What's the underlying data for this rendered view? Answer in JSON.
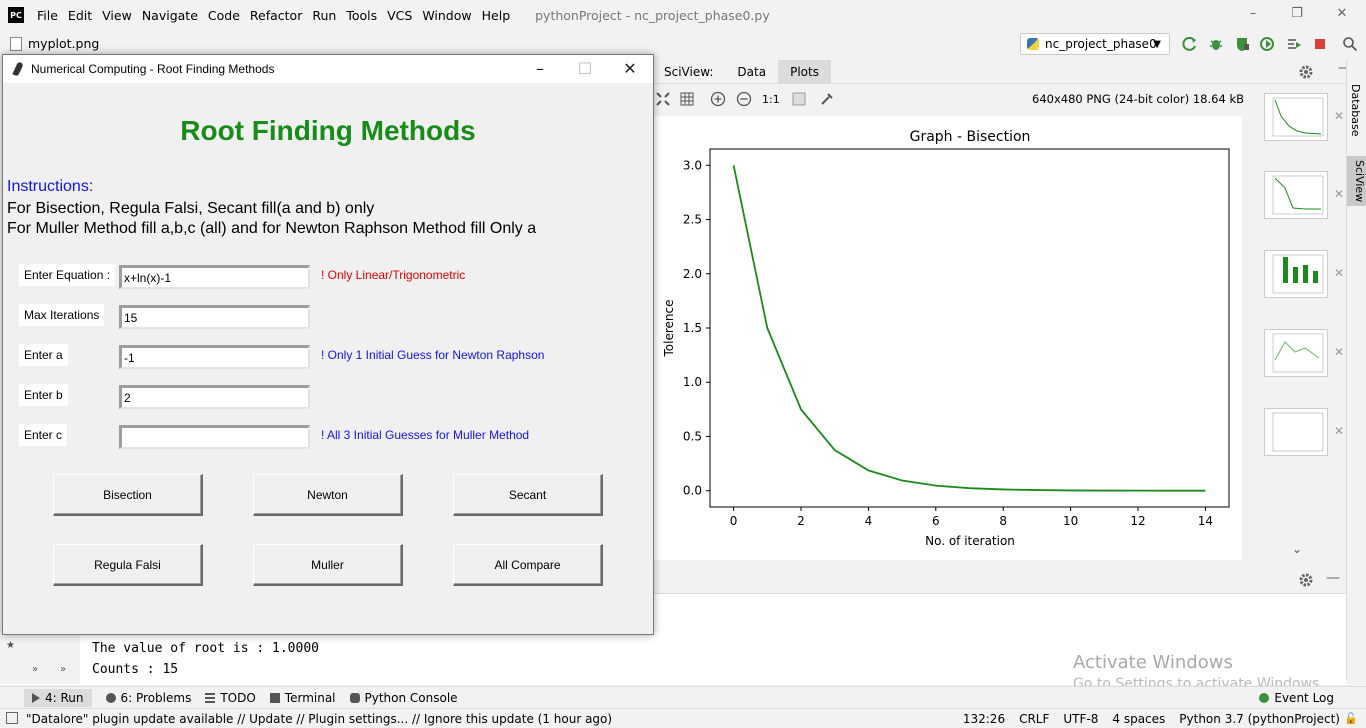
{
  "ide": {
    "logo": "PC",
    "menu": [
      "File",
      "Edit",
      "View",
      "Navigate",
      "Code",
      "Refactor",
      "Run",
      "Tools",
      "VCS",
      "Window",
      "Help"
    ],
    "title": "pythonProject - nc_project_phase0.py",
    "open_file": "myplot.png",
    "run_config": "nc_project_phase0"
  },
  "sciview": {
    "label": "SciView:",
    "tabs": [
      "Data",
      "Plots"
    ],
    "zoom_label": "1:1",
    "image_info": "640x480 PNG (24-bit color) 18.64 kB"
  },
  "chart_data": {
    "type": "line",
    "title": "Graph - Bisection",
    "xlabel": "No. of iteration",
    "ylabel": "Tolerence",
    "x": [
      0,
      1,
      2,
      3,
      4,
      5,
      6,
      7,
      8,
      9,
      10,
      11,
      12,
      13,
      14
    ],
    "series": [
      {
        "values": [
          3.0,
          1.5,
          0.75,
          0.375,
          0.1875,
          0.09375,
          0.046875,
          0.0234,
          0.0117,
          0.0059,
          0.0029,
          0.0015,
          0.0007,
          0.0004,
          0.0002
        ],
        "color": "#1a8a1a"
      }
    ],
    "xlim": [
      -0.7,
      14.7
    ],
    "ylim": [
      -0.15,
      3.15
    ],
    "xticks": [
      "0",
      "2",
      "4",
      "6",
      "8",
      "10",
      "12",
      "14"
    ],
    "yticks": [
      "0.0",
      "0.5",
      "1.0",
      "1.5",
      "2.0",
      "2.5",
      "3.0"
    ],
    "grid": false
  },
  "right_strip": {
    "tabs": [
      "Database",
      "SciView"
    ]
  },
  "console": {
    "lines": [
      "The value of root is :  1.0000",
      "Counts :  15"
    ]
  },
  "watermark": {
    "line1": "Activate Windows",
    "line2": "Go to Settings to activate Windows."
  },
  "toolwindows": {
    "run": "4: Run",
    "problems": "6: Problems",
    "todo": "TODO",
    "terminal": "Terminal",
    "python_console": "Python Console",
    "event_log": "Event Log"
  },
  "status": {
    "message": "\"Datalore\" plugin update available // Update // Plugin settings... // Ignore this update (1 hour ago)",
    "position": "132:26",
    "line_sep": "CRLF",
    "encoding": "UTF-8",
    "indent": "4 spaces",
    "interpreter": "Python 3.7 (pythonProject)"
  },
  "tk": {
    "title": "Numerical Computing - Root Finding Methods",
    "heading": "Root Finding Methods",
    "instructions_head": "Instructions:",
    "instr1": "For Bisection, Regula Falsi, Secant fill(a and b) only",
    "instr2": "For Muller Method fill a,b,c (all) and for Newton Raphson Method fill Only a",
    "fields": {
      "equation": {
        "label": "Enter Equation :",
        "value": "x+ln(x)-1",
        "hint": "! Only Linear/Trigonometric"
      },
      "max_iter": {
        "label": "Max Iterations",
        "value": "15"
      },
      "a": {
        "label": "Enter a",
        "value": "-1",
        "hint": "! Only 1 Initial Guess for Newton Raphson"
      },
      "b": {
        "label": "Enter b",
        "value": "2"
      },
      "c": {
        "label": "Enter c",
        "value": "",
        "hint": "! All 3 Initial Guesses for Muller Method"
      }
    },
    "buttons": {
      "bisection": "Bisection",
      "newton": "Newton",
      "secant": "Secant",
      "regula_falsi": "Regula Falsi",
      "muller": "Muller",
      "all_compare": "All Compare"
    },
    "colors": {
      "heading": "#188b18",
      "instr_head": "#1414e6",
      "hint_red": "#e00000",
      "hint_blue": "#1414e6"
    }
  }
}
